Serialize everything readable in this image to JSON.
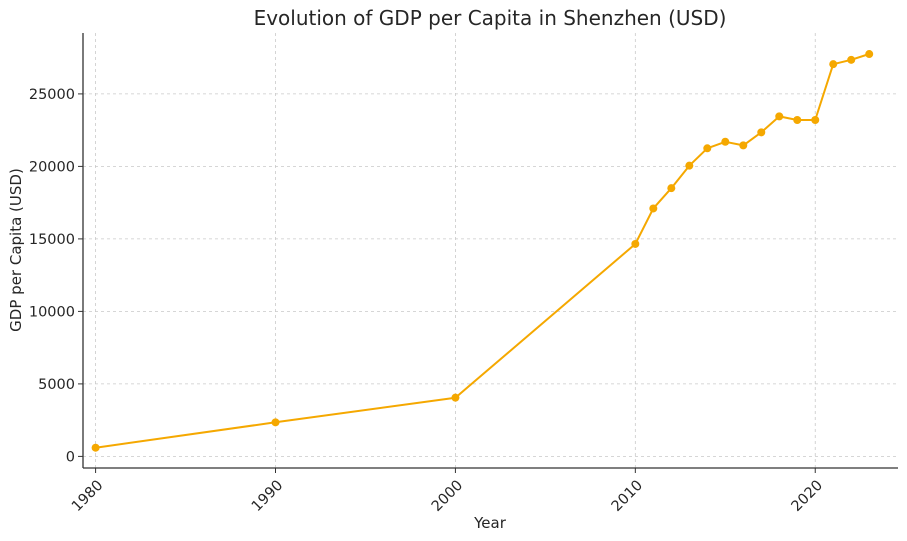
{
  "chart_data": {
    "type": "line",
    "title": "Evolution of GDP per Capita in Shenzhen (USD)",
    "xlabel": "Year",
    "ylabel": "GDP per Capita (USD)",
    "xlim": [
      1979.3,
      2024.6
    ],
    "ylim": [
      -800,
      29200
    ],
    "xticks": [
      1980,
      1990,
      2000,
      2010,
      2020
    ],
    "yticks": [
      0,
      5000,
      10000,
      15000,
      20000,
      25000
    ],
    "grid": true,
    "legend": "none",
    "series": [
      {
        "name": "GDP per Capita",
        "color": "#f5a800",
        "x": [
          1980,
          1990,
          2000,
          2010,
          2011,
          2012,
          2013,
          2014,
          2015,
          2016,
          2017,
          2018,
          2019,
          2020,
          2021,
          2022,
          2023
        ],
        "values": [
          600,
          2350,
          4050,
          14650,
          17100,
          18500,
          20050,
          21250,
          21700,
          21450,
          22350,
          23450,
          23200,
          23200,
          27050,
          27350,
          27750
        ]
      }
    ]
  }
}
